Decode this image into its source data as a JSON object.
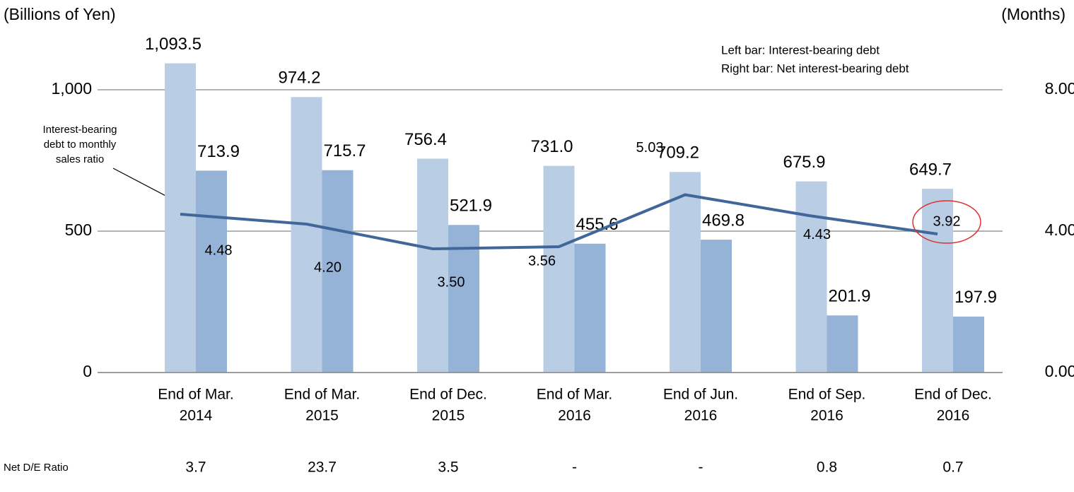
{
  "chart_data": {
    "type": "bar",
    "y_axis_label": "(Billions of Yen)",
    "y2_axis_label": "(Months)",
    "notes": [
      "Left bar: Interest-bearing debt",
      "Right bar: Net interest-bearing debt"
    ],
    "annotation": [
      "Interest-bearing",
      "debt to monthly",
      "sales ratio"
    ],
    "categories": [
      [
        "End of Mar.",
        "2014"
      ],
      [
        "End of Mar.",
        "2015"
      ],
      [
        "End of Dec.",
        "2015"
      ],
      [
        "End of Mar.",
        "2016"
      ],
      [
        "End of Jun.",
        "2016"
      ],
      [
        "End of Sep.",
        "2016"
      ],
      [
        "End of Dec.",
        "2016"
      ]
    ],
    "series": [
      {
        "color": "#b9cde5",
        "values": [
          1093.5,
          974.2,
          756.4,
          731.0,
          709.2,
          675.9,
          649.7
        ],
        "value_labels": [
          "1,093.5",
          "974.2",
          "756.4",
          "731.0",
          "709.2",
          "675.9",
          "649.7"
        ]
      },
      {
        "color": "#95b3d7",
        "values": [
          713.9,
          715.7,
          521.9,
          455.6,
          469.8,
          201.9,
          197.9
        ],
        "value_labels": [
          "713.9",
          "715.7",
          "521.9",
          "455.6",
          "469.8",
          "201.9",
          "197.9"
        ]
      },
      {
        "type": "line",
        "axis": "y2",
        "color": "#41679a",
        "values": [
          4.48,
          4.2,
          3.5,
          3.56,
          5.03,
          4.43,
          3.92
        ],
        "value_labels": [
          "4.48",
          "4.20",
          "3.50",
          "3.56",
          "5.03",
          "4.43",
          "3.92"
        ]
      }
    ],
    "ylim": [
      0,
      1250
    ],
    "yticks": [
      0,
      500,
      {
        "value": 1000,
        "label": "1,000"
      }
    ],
    "y2lim": [
      0,
      10
    ],
    "y2ticks": [
      {
        "value": 0,
        "label": "0.00"
      },
      {
        "value": 4,
        "label": "4.00"
      },
      {
        "value": 8,
        "label": "8.00"
      }
    ],
    "grid": true,
    "table_row": {
      "label": "Net D/E Ratio",
      "values": [
        "3.7",
        "23.7",
        "3.5",
        "-",
        "-",
        "0.8",
        "0.7"
      ]
    }
  }
}
